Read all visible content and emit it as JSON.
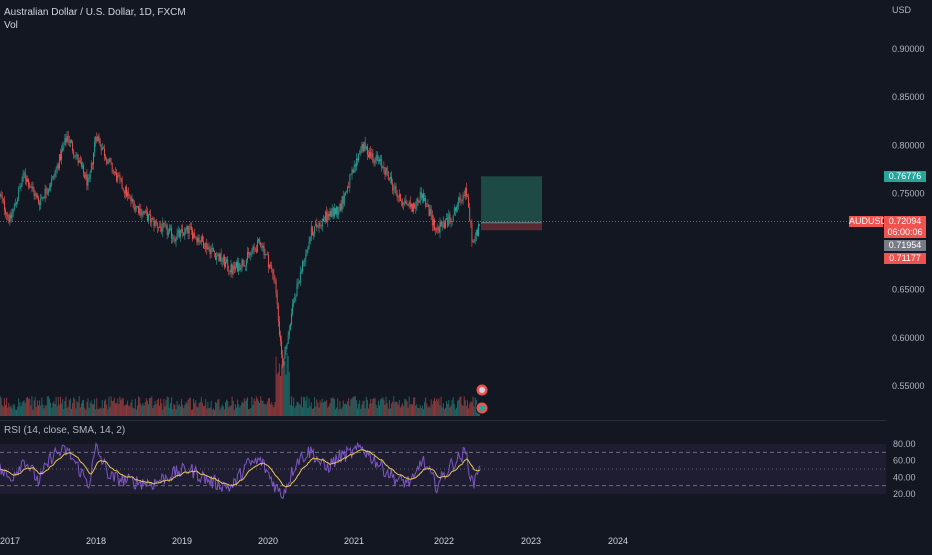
{
  "header": {
    "symbol_title": "Australian Dollar / U.S. Dollar, 1D, FXCM",
    "volume_label": "Vol"
  },
  "rsi_panel": {
    "label": "RSI (14, close, SMA, 14, 2)"
  },
  "price_scale": {
    "currency": "USD",
    "ticks": [
      "0.90000",
      "0.85000",
      "0.80000",
      "0.75000",
      "0.65000",
      "0.60000",
      "0.55000"
    ]
  },
  "rsi_scale": {
    "ticks": [
      "80.00",
      "60.00",
      "40.00",
      "20.00"
    ]
  },
  "time_axis": {
    "labels": [
      "2017",
      "2018",
      "2019",
      "2020",
      "2021",
      "2022",
      "2023",
      "2024"
    ]
  },
  "badges": {
    "take_profit": "0.76776",
    "symbol": "AUDUSD",
    "last_price": "0.72094",
    "countdown": "06:00:06",
    "entry": "0.71954",
    "stop_loss": "0.71177"
  },
  "colors": {
    "background": "#131722",
    "up": "#26a69a",
    "down": "#ef5350",
    "rsi_line": "#7e57c2",
    "rsi_ma": "#e6c65a",
    "profit_zone": "#1e4a45",
    "loss_zone": "#5a2a33",
    "grid_text": "#b2b5be"
  },
  "chart_data": [
    {
      "type": "candlestick",
      "title": "Australian Dollar / U.S. Dollar, 1D, FXCM",
      "x_range": [
        "2016-10",
        "2024-06"
      ],
      "y_scale": "price",
      "ylim": [
        0.515,
        0.935
      ],
      "series": [
        {
          "name": "AUDUSD",
          "points": [
            {
              "x": "2016-11",
              "y": 0.76
            },
            {
              "x": "2017-01",
              "y": 0.722
            },
            {
              "x": "2017-03",
              "y": 0.77
            },
            {
              "x": "2017-05",
              "y": 0.741
            },
            {
              "x": "2017-07",
              "y": 0.765
            },
            {
              "x": "2017-09",
              "y": 0.81
            },
            {
              "x": "2017-12",
              "y": 0.758
            },
            {
              "x": "2018-01",
              "y": 0.812
            },
            {
              "x": "2018-03",
              "y": 0.778
            },
            {
              "x": "2018-06",
              "y": 0.741
            },
            {
              "x": "2018-09",
              "y": 0.72
            },
            {
              "x": "2018-12",
              "y": 0.705
            },
            {
              "x": "2019-02",
              "y": 0.712
            },
            {
              "x": "2019-05",
              "y": 0.692
            },
            {
              "x": "2019-08",
              "y": 0.67
            },
            {
              "x": "2019-10",
              "y": 0.682
            },
            {
              "x": "2019-12",
              "y": 0.7
            },
            {
              "x": "2020-02",
              "y": 0.66
            },
            {
              "x": "2020-03",
              "y": 0.573
            },
            {
              "x": "2020-05",
              "y": 0.652
            },
            {
              "x": "2020-07",
              "y": 0.71
            },
            {
              "x": "2020-09",
              "y": 0.725
            },
            {
              "x": "2020-11",
              "y": 0.735
            },
            {
              "x": "2021-01",
              "y": 0.775
            },
            {
              "x": "2021-02",
              "y": 0.8
            },
            {
              "x": "2021-05",
              "y": 0.777
            },
            {
              "x": "2021-07",
              "y": 0.745
            },
            {
              "x": "2021-09",
              "y": 0.735
            },
            {
              "x": "2021-10",
              "y": 0.75
            },
            {
              "x": "2021-12",
              "y": 0.712
            },
            {
              "x": "2022-02",
              "y": 0.725
            },
            {
              "x": "2022-04",
              "y": 0.755
            },
            {
              "x": "2022-05",
              "y": 0.697
            },
            {
              "x": "2022-06",
              "y": 0.721
            }
          ]
        }
      ],
      "last_price": 0.72094,
      "position": {
        "take_profit": 0.76776,
        "entry": 0.71954,
        "stop_loss": 0.71177
      }
    },
    {
      "type": "bar",
      "title": "Vol",
      "x_range": [
        "2016-10",
        "2022-06"
      ],
      "notes": "volume histogram colored by candle direction; tall spike in 2020-03"
    },
    {
      "type": "line",
      "title": "RSI (14, close, SMA, 14, 2)",
      "ylim": [
        15,
        85
      ],
      "bands": [
        30,
        50,
        70
      ],
      "series": [
        {
          "name": "RSI",
          "points": [
            {
              "x": "2016-11",
              "y": 55
            },
            {
              "x": "2017-01",
              "y": 38
            },
            {
              "x": "2017-03",
              "y": 62
            },
            {
              "x": "2017-05",
              "y": 35
            },
            {
              "x": "2017-07",
              "y": 68
            },
            {
              "x": "2017-09",
              "y": 72
            },
            {
              "x": "2017-12",
              "y": 32
            },
            {
              "x": "2018-01",
              "y": 75
            },
            {
              "x": "2018-03",
              "y": 40
            },
            {
              "x": "2018-06",
              "y": 35
            },
            {
              "x": "2018-09",
              "y": 33
            },
            {
              "x": "2018-12",
              "y": 45
            },
            {
              "x": "2019-02",
              "y": 50
            },
            {
              "x": "2019-05",
              "y": 35
            },
            {
              "x": "2019-08",
              "y": 28
            },
            {
              "x": "2019-10",
              "y": 55
            },
            {
              "x": "2019-12",
              "y": 60
            },
            {
              "x": "2020-02",
              "y": 30
            },
            {
              "x": "2020-03",
              "y": 18
            },
            {
              "x": "2020-05",
              "y": 60
            },
            {
              "x": "2020-07",
              "y": 72
            },
            {
              "x": "2020-09",
              "y": 50
            },
            {
              "x": "2020-11",
              "y": 65
            },
            {
              "x": "2021-01",
              "y": 70
            },
            {
              "x": "2021-02",
              "y": 76
            },
            {
              "x": "2021-05",
              "y": 50
            },
            {
              "x": "2021-07",
              "y": 35
            },
            {
              "x": "2021-09",
              "y": 35
            },
            {
              "x": "2021-10",
              "y": 62
            },
            {
              "x": "2021-12",
              "y": 30
            },
            {
              "x": "2022-02",
              "y": 55
            },
            {
              "x": "2022-04",
              "y": 70
            },
            {
              "x": "2022-05",
              "y": 30
            },
            {
              "x": "2022-06",
              "y": 60
            }
          ]
        }
      ]
    }
  ]
}
